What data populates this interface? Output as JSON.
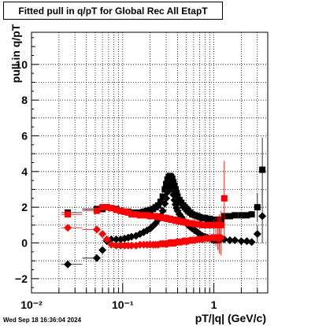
{
  "title": "Fitted pull in q/pT for Global Rec All EtapT",
  "timestamp": "Wed Sep 18 16:36:04 2024",
  "chart_data": {
    "type": "scatter",
    "title": "Fitted pull in q/pT for Global Rec All EtapT",
    "xlabel": "pT/|q| (GeV/c)",
    "ylabel": "pull in q/pT",
    "xscale": "log",
    "xlim": [
      0.01,
      3.9
    ],
    "ylim": [
      -2.8,
      11.8
    ],
    "y_ticks": [
      -2,
      0,
      2,
      4,
      6,
      8,
      10
    ],
    "y_tick_labels": [
      "−2",
      "0",
      "2",
      "4",
      "6",
      "8",
      "10"
    ],
    "x_ticks": [
      0.01,
      0.1,
      1
    ],
    "x_tick_labels": [
      "10⁻²",
      "10⁻¹",
      "1"
    ],
    "grid": true,
    "series": [
      {
        "color": "#000000",
        "marker": "square",
        "x": [
          0.025,
          0.052,
          0.06,
          0.067,
          0.075,
          0.085,
          0.095,
          0.105,
          0.115,
          0.125,
          0.14,
          0.155,
          0.17,
          0.185,
          0.2,
          0.215,
          0.23,
          0.245,
          0.26,
          0.275,
          0.29,
          0.3,
          0.31,
          0.32,
          0.33,
          0.34,
          0.35,
          0.36,
          0.37,
          0.38,
          0.39,
          0.4,
          0.42,
          0.44,
          0.46,
          0.48,
          0.5,
          0.52,
          0.55,
          0.58,
          0.62,
          0.66,
          0.7,
          0.75,
          0.8,
          0.85,
          0.9,
          0.95,
          1.0,
          1.05,
          1.1,
          1.15,
          1.2,
          1.3,
          1.5,
          1.7,
          2.0,
          2.3,
          2.6,
          3.0,
          3.4
        ],
        "y": [
          1.7,
          1.9,
          1.9,
          2.0,
          1.95,
          1.9,
          1.8,
          1.75,
          1.75,
          1.7,
          1.7,
          1.7,
          1.75,
          1.8,
          1.85,
          1.9,
          2.0,
          2.1,
          2.3,
          2.6,
          3.0,
          3.3,
          3.55,
          3.7,
          3.75,
          3.7,
          3.6,
          3.4,
          3.2,
          3.0,
          2.8,
          2.6,
          2.4,
          2.25,
          2.1,
          2.0,
          1.9,
          1.8,
          1.7,
          1.6,
          1.55,
          1.5,
          1.45,
          1.4,
          1.4,
          1.35,
          1.35,
          1.3,
          1.3,
          1.3,
          1.3,
          1.3,
          1.3,
          1.5,
          1.5,
          1.55,
          1.55,
          1.55,
          1.6,
          2.0,
          4.1
        ],
        "y_err": [
          0.1,
          0.1,
          0.1,
          0.1,
          0.1,
          0.1,
          0.1,
          0.1,
          0.1,
          0.1,
          0.1,
          0.1,
          0.1,
          0.1,
          0.1,
          0.1,
          0.1,
          0.1,
          0.1,
          0.1,
          0.1,
          0.1,
          0.1,
          0.1,
          0.1,
          0.1,
          0.1,
          0.1,
          0.1,
          0.1,
          0.1,
          0.1,
          0.1,
          0.1,
          0.1,
          0.1,
          0.1,
          0.1,
          0.1,
          0.1,
          0.1,
          0.1,
          0.1,
          0.1,
          0.1,
          0.1,
          0.1,
          0.1,
          0.1,
          0.1,
          0.1,
          0.1,
          0.1,
          0.1,
          0.1,
          0.1,
          0.1,
          0.1,
          0.1,
          0.8,
          1.8
        ]
      },
      {
        "color": "#000000",
        "marker": "diamond",
        "x": [
          0.025,
          0.052,
          0.06,
          0.067,
          0.075,
          0.085,
          0.095,
          0.105,
          0.115,
          0.125,
          0.14,
          0.155,
          0.17,
          0.185,
          0.2,
          0.215,
          0.23,
          0.245,
          0.26,
          0.275,
          0.29,
          0.3,
          0.31,
          0.32,
          0.33,
          0.34,
          0.35,
          0.36,
          0.37,
          0.38,
          0.39,
          0.4,
          0.42,
          0.44,
          0.46,
          0.48,
          0.5,
          0.52,
          0.55,
          0.58,
          0.62,
          0.66,
          0.7,
          0.75,
          0.8,
          0.85,
          0.9,
          0.95,
          1.0,
          1.05,
          1.1,
          1.15,
          1.2,
          1.3,
          1.5,
          1.7,
          2.0,
          2.3,
          2.6,
          3.0,
          3.4
        ],
        "y": [
          -1.2,
          -0.85,
          -0.4,
          0.1,
          0.2,
          0.2,
          0.2,
          0.25,
          0.3,
          0.35,
          0.4,
          0.5,
          0.6,
          0.7,
          0.8,
          0.95,
          1.1,
          1.3,
          1.5,
          1.8,
          2.2,
          2.5,
          2.85,
          3.1,
          3.25,
          3.2,
          3.0,
          2.7,
          2.4,
          2.15,
          1.95,
          1.8,
          1.6,
          1.45,
          1.3,
          1.2,
          1.1,
          1.0,
          0.9,
          0.8,
          0.7,
          0.6,
          0.5,
          0.4,
          0.35,
          0.3,
          0.25,
          0.2,
          0.15,
          0.15,
          0.15,
          0.15,
          0.2,
          0.2,
          0.15,
          0.15,
          0.1,
          0.1,
          0.05,
          0.5,
          1.5
        ],
        "y_err": [
          0.1,
          0.1,
          0.1,
          0.1,
          0.1,
          0.1,
          0.1,
          0.1,
          0.1,
          0.1,
          0.1,
          0.1,
          0.1,
          0.1,
          0.1,
          0.1,
          0.1,
          0.1,
          0.1,
          0.1,
          0.1,
          0.1,
          0.1,
          0.1,
          0.1,
          0.1,
          0.1,
          0.1,
          0.1,
          0.1,
          0.1,
          0.1,
          0.1,
          0.1,
          0.1,
          0.1,
          0.1,
          0.1,
          0.1,
          0.1,
          0.1,
          0.1,
          0.1,
          0.1,
          0.1,
          0.1,
          0.1,
          0.1,
          0.1,
          0.1,
          0.1,
          0.1,
          0.1,
          0.1,
          0.1,
          0.1,
          0.1,
          0.1,
          0.1,
          0.5,
          1.5
        ]
      },
      {
        "color": "#ff0000",
        "marker": "square",
        "x": [
          0.025,
          0.052,
          0.06,
          0.067,
          0.075,
          0.085,
          0.095,
          0.105,
          0.115,
          0.125,
          0.14,
          0.155,
          0.17,
          0.185,
          0.2,
          0.215,
          0.23,
          0.245,
          0.26,
          0.275,
          0.29,
          0.3,
          0.31,
          0.32,
          0.33,
          0.34,
          0.35,
          0.36,
          0.37,
          0.38,
          0.39,
          0.4,
          0.42,
          0.44,
          0.46,
          0.48,
          0.5,
          0.52,
          0.55,
          0.58,
          0.62,
          0.66,
          0.7,
          0.75,
          0.8,
          0.85,
          0.9,
          0.95,
          1.0,
          1.05,
          1.1,
          1.15,
          1.2,
          1.3
        ],
        "y": [
          1.6,
          1.8,
          2.0,
          2.0,
          1.95,
          1.85,
          1.8,
          1.75,
          1.7,
          1.6,
          1.6,
          1.55,
          1.55,
          1.55,
          1.5,
          1.5,
          1.5,
          1.45,
          1.45,
          1.4,
          1.4,
          1.4,
          1.35,
          1.35,
          1.35,
          1.3,
          1.3,
          1.3,
          1.3,
          1.25,
          1.25,
          1.25,
          1.2,
          1.2,
          1.2,
          1.15,
          1.15,
          1.1,
          1.1,
          1.1,
          1.05,
          1.05,
          1.05,
          1.0,
          1.0,
          1.0,
          1.0,
          1.0,
          1.0,
          1.0,
          1.0,
          1.0,
          1.0,
          2.5
        ],
        "y_err": [
          0.1,
          0.1,
          0.1,
          0.1,
          0.1,
          0.1,
          0.1,
          0.1,
          0.1,
          0.1,
          0.1,
          0.1,
          0.1,
          0.1,
          0.1,
          0.1,
          0.1,
          0.1,
          0.1,
          0.1,
          0.1,
          0.1,
          0.1,
          0.1,
          0.1,
          0.1,
          0.1,
          0.1,
          0.1,
          0.1,
          0.1,
          0.1,
          0.1,
          0.1,
          0.1,
          0.1,
          0.1,
          0.1,
          0.1,
          0.1,
          0.1,
          0.1,
          0.1,
          0.1,
          0.1,
          0.1,
          0.1,
          0.1,
          0.3,
          0.4,
          0.5,
          0.6,
          0.8,
          2.1
        ]
      },
      {
        "color": "#ff0000",
        "marker": "diamond",
        "x": [
          0.025,
          0.052,
          0.06,
          0.067,
          0.075,
          0.085,
          0.095,
          0.105,
          0.115,
          0.125,
          0.14,
          0.155,
          0.17,
          0.185,
          0.2,
          0.215,
          0.23,
          0.245,
          0.26,
          0.275,
          0.29,
          0.3,
          0.31,
          0.32,
          0.33,
          0.34,
          0.35,
          0.36,
          0.37,
          0.38,
          0.39,
          0.4,
          0.42,
          0.44,
          0.46,
          0.48,
          0.5,
          0.52,
          0.55,
          0.58,
          0.62,
          0.66,
          0.7,
          0.75,
          0.8,
          0.85,
          0.9,
          0.95,
          1.0,
          1.05,
          1.1,
          1.15,
          1.2
        ],
        "y": [
          0.85,
          0.75,
          0.5,
          0.2,
          -0.1,
          -0.15,
          -0.15,
          -0.15,
          -0.15,
          -0.15,
          -0.15,
          -0.1,
          -0.1,
          -0.1,
          -0.1,
          -0.1,
          -0.1,
          -0.1,
          -0.05,
          -0.05,
          -0.05,
          -0.05,
          -0.05,
          0.0,
          0.0,
          0.0,
          0.0,
          0.0,
          0.0,
          0.0,
          0.05,
          0.05,
          0.05,
          0.05,
          0.1,
          0.1,
          0.1,
          0.1,
          0.15,
          0.15,
          0.15,
          0.2,
          0.2,
          0.2,
          0.25,
          0.25,
          0.25,
          0.3,
          0.3,
          0.3,
          0.3,
          0.3,
          0.3
        ],
        "y_err": [
          0.1,
          0.1,
          0.1,
          0.1,
          0.1,
          0.1,
          0.1,
          0.1,
          0.1,
          0.1,
          0.1,
          0.1,
          0.1,
          0.1,
          0.1,
          0.1,
          0.1,
          0.1,
          0.1,
          0.1,
          0.1,
          0.1,
          0.1,
          0.1,
          0.1,
          0.1,
          0.1,
          0.1,
          0.1,
          0.1,
          0.1,
          0.1,
          0.1,
          0.1,
          0.1,
          0.1,
          0.1,
          0.1,
          0.1,
          0.1,
          0.1,
          0.1,
          0.1,
          0.1,
          0.1,
          0.1,
          0.1,
          0.1,
          0.3,
          0.5,
          0.7,
          0.9,
          1.0
        ]
      }
    ]
  }
}
